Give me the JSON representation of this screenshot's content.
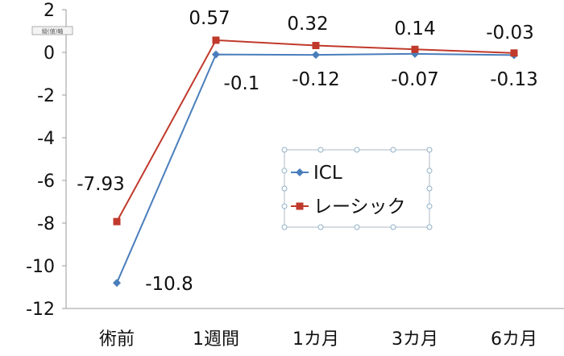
{
  "chart_data": {
    "type": "line",
    "categories": [
      "術前",
      "1週間",
      "1カ月",
      "3カ月",
      "6カ月"
    ],
    "series": [
      {
        "name": "ICL",
        "color": "#4a7ebb",
        "marker": "diamond",
        "values": [
          -10.8,
          -0.1,
          -0.12,
          -0.07,
          -0.13
        ]
      },
      {
        "name": "レーシック",
        "color": "#c0392b",
        "marker": "square",
        "values": [
          -7.93,
          0.57,
          0.32,
          0.14,
          -0.03
        ]
      }
    ],
    "data_labels": [
      {
        "series": 0,
        "index": 0,
        "text": "-10.8"
      },
      {
        "series": 0,
        "index": 1,
        "text": "-0.1"
      },
      {
        "series": 0,
        "index": 2,
        "text": "-0.12"
      },
      {
        "series": 0,
        "index": 3,
        "text": "-0.07"
      },
      {
        "series": 0,
        "index": 4,
        "text": "-0.13"
      },
      {
        "series": 1,
        "index": 0,
        "text": "-7.93"
      },
      {
        "series": 1,
        "index": 1,
        "text": "0.57"
      },
      {
        "series": 1,
        "index": 2,
        "text": "0.32"
      },
      {
        "series": 1,
        "index": 3,
        "text": "0.14"
      },
      {
        "series": 1,
        "index": 4,
        "text": "-0.03"
      }
    ],
    "ylim": [
      -12,
      2
    ],
    "yticks": [
      2,
      0,
      -2,
      -4,
      -6,
      -8,
      -10,
      -12
    ],
    "grid": false,
    "legend": {
      "position": "center-right",
      "entries": [
        "ICL",
        "レーシック"
      ]
    },
    "corner_tag": "縦(値)軸"
  }
}
